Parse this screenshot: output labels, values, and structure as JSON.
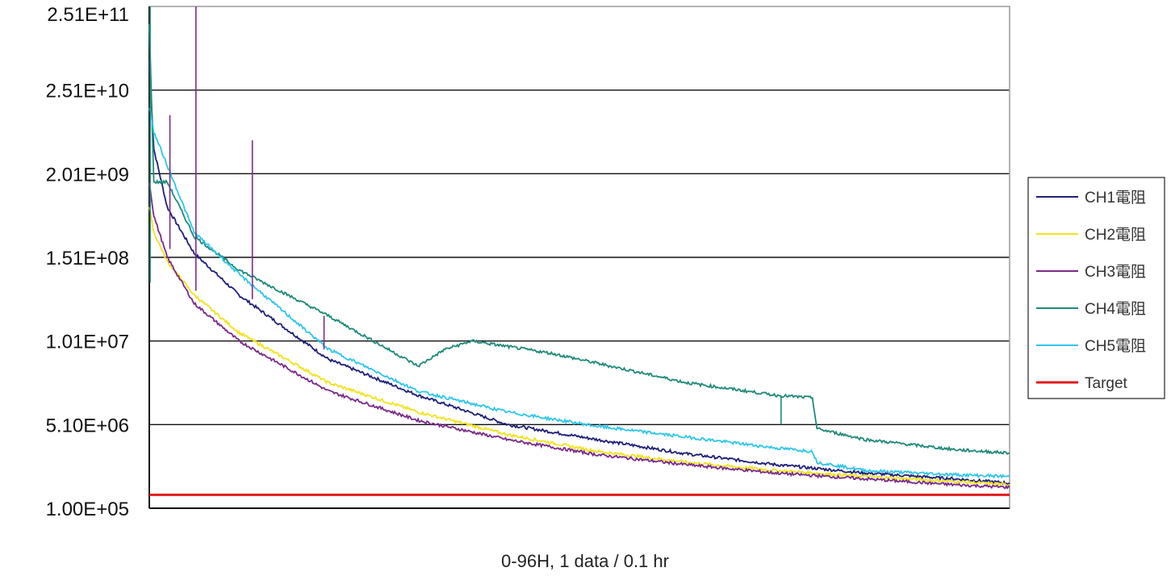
{
  "chart_data": {
    "type": "line",
    "title": "",
    "xlabel": "0-96H, 1 data / 0.1 hr",
    "ylabel": "",
    "x_range": [
      0,
      96
    ],
    "y_axis": {
      "scale": "log-like (evenly spaced labels)",
      "tick_labels": [
        "1.00E+05",
        "5.10E+06",
        "1.01E+07",
        "1.51E+08",
        "2.01E+09",
        "2.51E+10",
        "2.51E+11"
      ]
    },
    "grid": "horizontal",
    "legend_position": "right",
    "colors": {
      "CH1": "#1f1f7a",
      "CH2": "#f2e21c",
      "CH3": "#7a2a8a",
      "CH4": "#1f8a7a",
      "CH5": "#2ec6ea",
      "Target": "#e01b1b"
    },
    "series": [
      {
        "name": "CH1電阻",
        "key": "CH1",
        "x": [
          0,
          0.5,
          2,
          5,
          10,
          20,
          30,
          40,
          50,
          60,
          70,
          80,
          90,
          96
        ],
        "y_level": [
          5.35,
          4.3,
          3.6,
          3.05,
          2.55,
          1.78,
          1.35,
          1.0,
          0.82,
          0.65,
          0.52,
          0.42,
          0.35,
          0.3
        ]
      },
      {
        "name": "CH2電阻",
        "key": "CH2",
        "x": [
          0,
          0.5,
          2,
          5,
          10,
          20,
          30,
          40,
          50,
          60,
          70,
          80,
          90,
          96
        ],
        "y_level": [
          3.6,
          3.3,
          2.95,
          2.55,
          2.1,
          1.5,
          1.15,
          0.88,
          0.68,
          0.55,
          0.45,
          0.38,
          0.32,
          0.28
        ]
      },
      {
        "name": "CH3電阻",
        "key": "CH3",
        "x": [
          0,
          0.5,
          2,
          5,
          10,
          20,
          30,
          40,
          50,
          60,
          70,
          80,
          90,
          96
        ],
        "y_level": [
          3.9,
          3.5,
          3.0,
          2.45,
          2.0,
          1.4,
          1.05,
          0.82,
          0.64,
          0.52,
          0.42,
          0.35,
          0.28,
          0.25
        ]
      },
      {
        "name": "CH4電阻",
        "key": "CH4",
        "x": [
          0,
          0.5,
          2,
          5,
          10,
          20,
          30,
          33,
          36,
          45,
          60,
          70,
          74,
          74.5,
          80,
          90,
          96
        ],
        "y_level": [
          5.8,
          3.9,
          3.9,
          3.25,
          2.85,
          2.3,
          1.7,
          1.9,
          2.0,
          1.85,
          1.5,
          1.35,
          1.32,
          0.95,
          0.82,
          0.7,
          0.66
        ]
      },
      {
        "name": "CH5電阻",
        "key": "CH5",
        "x": [
          0,
          0.5,
          2,
          5,
          10,
          20,
          30,
          40,
          50,
          60,
          70,
          74,
          74.5,
          80,
          90,
          96
        ],
        "y_level": [
          4.8,
          4.5,
          4.1,
          3.3,
          2.8,
          1.9,
          1.4,
          1.15,
          0.98,
          0.85,
          0.72,
          0.68,
          0.55,
          0.45,
          0.4,
          0.38
        ]
      },
      {
        "name": "Target",
        "key": "Target",
        "x": [
          0,
          96
        ],
        "y_level": [
          0.16,
          0.16
        ]
      }
    ]
  }
}
